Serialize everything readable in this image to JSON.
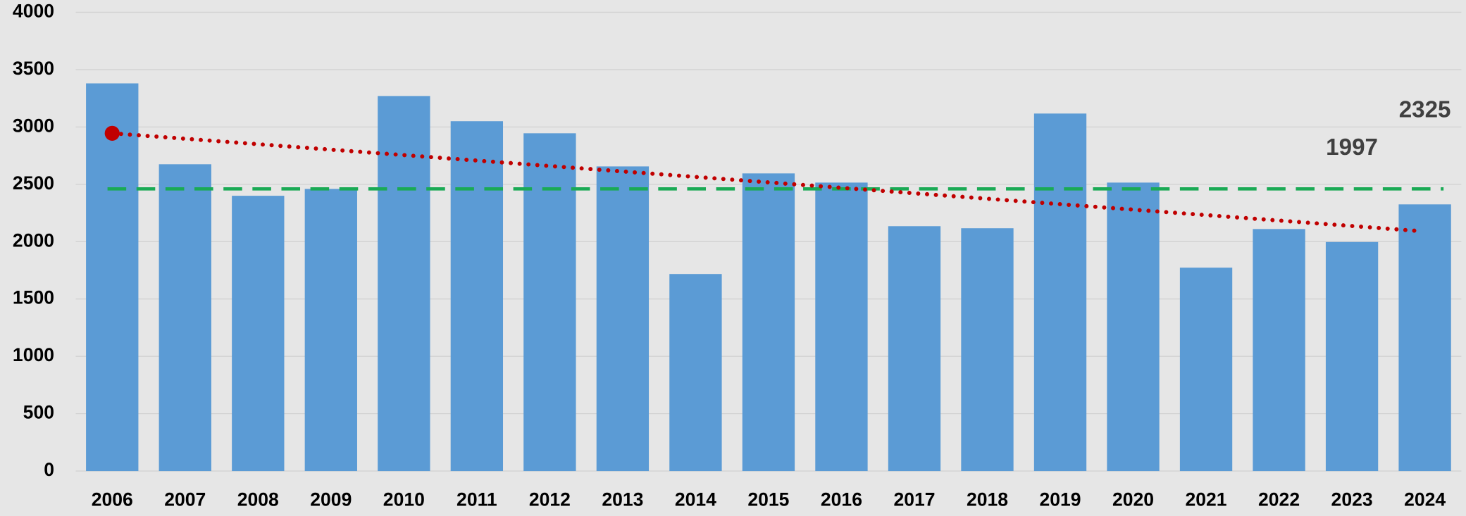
{
  "chart_data": {
    "type": "bar",
    "categories": [
      "2006",
      "2007",
      "2008",
      "2009",
      "2010",
      "2011",
      "2012",
      "2013",
      "2014",
      "2015",
      "2016",
      "2017",
      "2018",
      "2019",
      "2020",
      "2021",
      "2022",
      "2023",
      "2024"
    ],
    "values": [
      3380,
      2675,
      2400,
      2460,
      3270,
      3050,
      2945,
      2656,
      1718,
      2595,
      2515,
      2135,
      2117,
      3117,
      2515,
      1773,
      2110,
      1997,
      2325
    ],
    "value_labels": [
      null,
      null,
      null,
      null,
      null,
      null,
      null,
      null,
      null,
      null,
      null,
      null,
      null,
      null,
      null,
      null,
      null,
      "1997",
      "2325"
    ],
    "color": "#5b9bd5",
    "average": {
      "value": 2460,
      "color": "#1aaa55"
    },
    "trend": {
      "values": [
        2945,
        2092
      ],
      "color": "#c00000"
    },
    "ylim": [
      0,
      4000
    ],
    "yticks": [
      0,
      500,
      1000,
      1500,
      2000,
      2500,
      3000,
      3500,
      4000
    ],
    "grid": true
  }
}
